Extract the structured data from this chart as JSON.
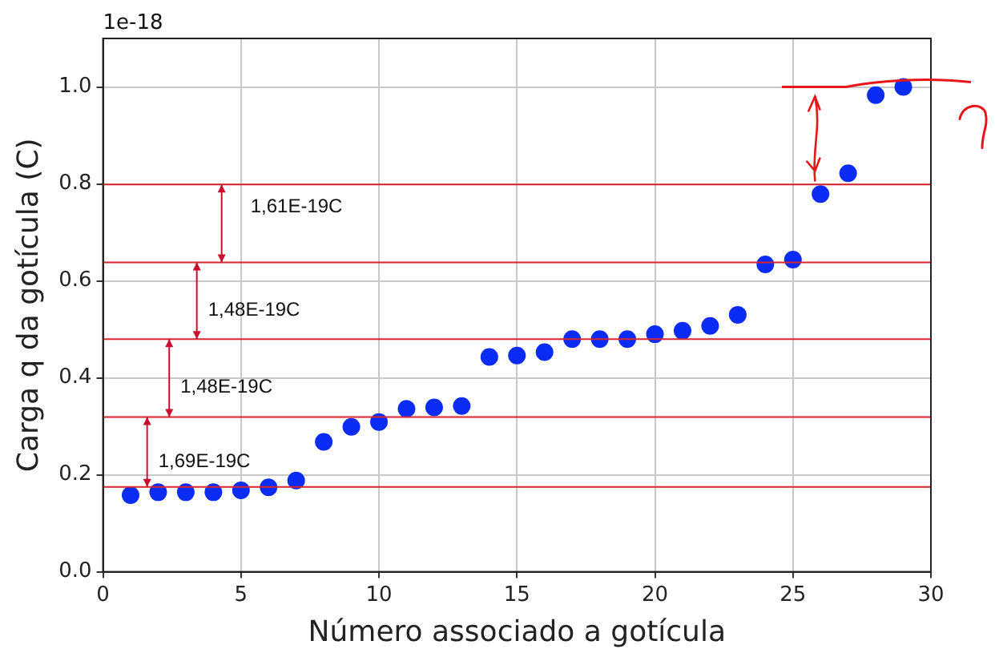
{
  "chart_data": {
    "type": "scatter",
    "xlabel": "Número associado a gotícula",
    "ylabel": "Carga q da gotícula (C)",
    "x": [
      1,
      2,
      3,
      4,
      5,
      6,
      7,
      8,
      9,
      10,
      11,
      12,
      13,
      14,
      15,
      16,
      17,
      18,
      19,
      20,
      21,
      22,
      23,
      24,
      25,
      26,
      27,
      28,
      29
    ],
    "series": [
      {
        "color": "#0b2cf5",
        "values": [
          0.158,
          0.164,
          0.164,
          0.164,
          0.168,
          0.174,
          0.188,
          0.268,
          0.299,
          0.309,
          0.336,
          0.339,
          0.342,
          0.443,
          0.446,
          0.453,
          0.48,
          0.48,
          0.48,
          0.49,
          0.497,
          0.507,
          0.53,
          0.634,
          0.644,
          0.779,
          0.822,
          0.983,
          1.0
        ]
      }
    ],
    "xlim": [
      0,
      30
    ],
    "ylim": [
      0,
      1.1
    ],
    "xticks": [
      0,
      5,
      10,
      15,
      20,
      25,
      30
    ],
    "yticks": [
      {
        "value": 0,
        "label": "0.0"
      },
      {
        "value": 0.2,
        "label": "0.2"
      },
      {
        "value": 0.4,
        "label": "0.4"
      },
      {
        "value": 0.6,
        "label": "0.6"
      },
      {
        "value": 0.8,
        "label": "0.8"
      },
      {
        "value": 1,
        "label": "1.0"
      }
    ],
    "grid": true,
    "marker": "circle",
    "ref_lines": [
      {
        "axis": "y",
        "value": 0.175,
        "color": "#d9232e"
      },
      {
        "axis": "y",
        "value": 0.319,
        "color": "#d9232e"
      },
      {
        "axis": "y",
        "value": 0.48,
        "color": "#d9232e"
      },
      {
        "axis": "y",
        "value": 0.638,
        "color": "#d9232e"
      },
      {
        "axis": "y",
        "value": 0.799,
        "color": "#d9232e"
      }
    ],
    "annotations": [
      "1e-18",
      {
        "text": "1,69E-19C",
        "x": 1.6,
        "y": 0.319
      },
      {
        "text": "1,48E-19C",
        "x": 2.4,
        "y": 0.48
      },
      {
        "text": "1,48E-19C",
        "x": 3.4,
        "y": 0.638
      },
      {
        "text": "1,61E-19C",
        "x": 4.3,
        "y": 0.799
      }
    ]
  }
}
